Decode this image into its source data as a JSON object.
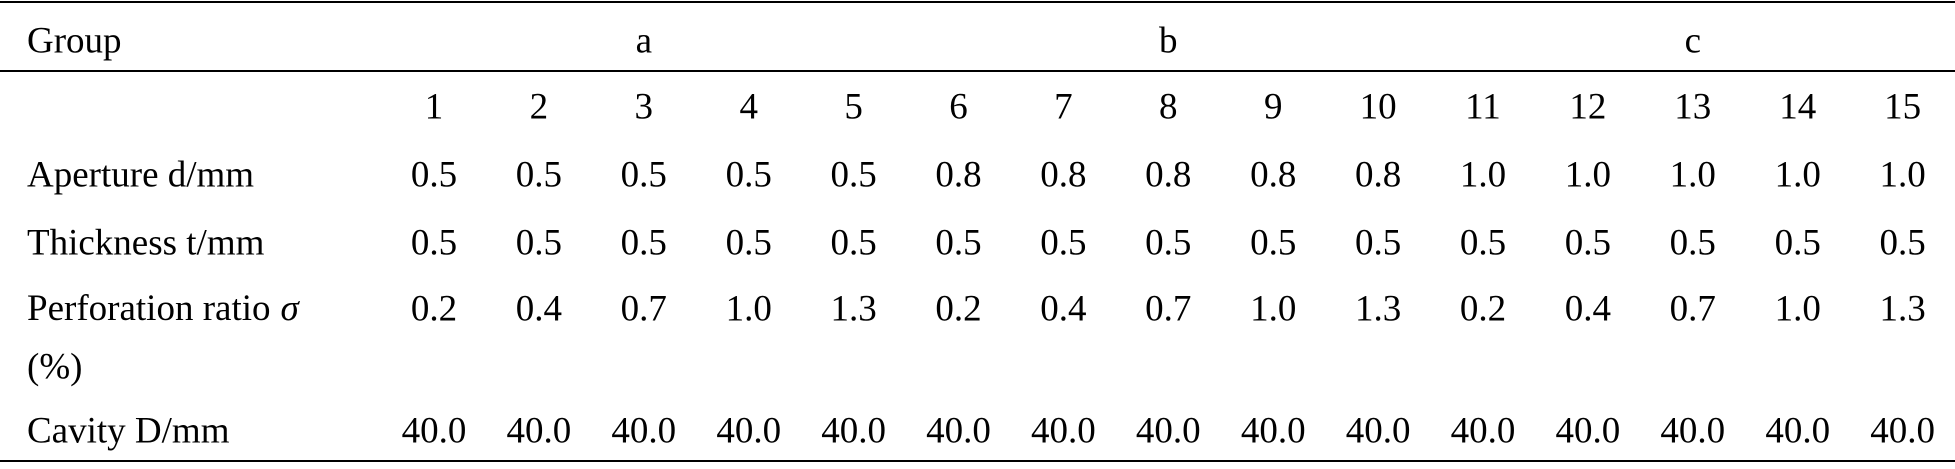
{
  "table": {
    "header": {
      "label": "Group",
      "groups": [
        "a",
        "b",
        "c"
      ]
    },
    "columns": [
      1,
      2,
      3,
      4,
      5,
      6,
      7,
      8,
      9,
      10,
      11,
      12,
      13,
      14,
      15
    ],
    "rows": [
      {
        "label": "Aperture d/mm",
        "values": [
          "0.5",
          "0.5",
          "0.5",
          "0.5",
          "0.5",
          "0.8",
          "0.8",
          "0.8",
          "0.8",
          "0.8",
          "1.0",
          "1.0",
          "1.0",
          "1.0",
          "1.0"
        ]
      },
      {
        "label": "Thickness t/mm",
        "values": [
          "0.5",
          "0.5",
          "0.5",
          "0.5",
          "0.5",
          "0.5",
          "0.5",
          "0.5",
          "0.5",
          "0.5",
          "0.5",
          "0.5",
          "0.5",
          "0.5",
          "0.5"
        ]
      },
      {
        "label": [
          "Perforation ratio",
          "σ",
          "(%)"
        ],
        "values": [
          "0.2",
          "0.4",
          "0.7",
          "1.0",
          "1.3",
          "0.2",
          "0.4",
          "0.7",
          "1.0",
          "1.3",
          "0.2",
          "0.4",
          "0.7",
          "1.0",
          "1.3"
        ]
      },
      {
        "label": "Cavity D/mm",
        "values": [
          "40.0",
          "40.0",
          "40.0",
          "40.0",
          "40.0",
          "40.0",
          "40.0",
          "40.0",
          "40.0",
          "40.0",
          "40.0",
          "40.0",
          "40.0",
          "40.0",
          "40.0"
        ]
      }
    ]
  }
}
